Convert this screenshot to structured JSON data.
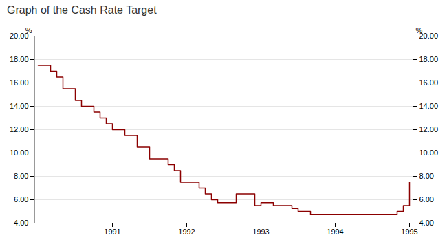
{
  "chart_data": {
    "type": "step",
    "title": "Graph of the Cash Rate Target",
    "ylabel": "%",
    "y2label": "%",
    "color": "#8B0000",
    "categories": [
      null,
      null,
      null,
      null,
      null,
      null,
      null,
      null,
      null,
      null,
      null,
      null,
      "1991",
      null,
      null,
      null,
      null,
      null,
      null,
      null,
      null,
      null,
      null,
      null,
      "1992",
      null,
      null,
      null,
      null,
      null,
      null,
      null,
      null,
      null,
      null,
      null,
      "1993",
      null,
      null,
      null,
      null,
      null,
      null,
      null,
      null,
      null,
      null,
      null,
      "1994",
      null,
      null,
      null,
      null,
      null,
      null,
      null,
      null,
      null,
      null,
      null,
      "1995"
    ],
    "values": [
      17.5,
      17.5,
      17.0,
      16.5,
      15.5,
      15.5,
      14.5,
      14.0,
      14.0,
      13.5,
      13.0,
      12.5,
      12.0,
      12.0,
      11.5,
      11.5,
      10.5,
      10.5,
      9.5,
      9.5,
      9.5,
      9.0,
      8.5,
      7.5,
      7.5,
      7.5,
      7.0,
      6.5,
      6.0,
      5.75,
      5.75,
      5.75,
      6.5,
      6.5,
      6.5,
      5.5,
      5.75,
      5.75,
      5.5,
      5.5,
      5.5,
      5.25,
      5.0,
      5.0,
      4.75,
      4.75,
      4.75,
      4.75,
      4.75,
      4.75,
      4.75,
      4.75,
      4.75,
      4.75,
      4.75,
      4.75,
      4.75,
      4.75,
      5.0,
      5.5,
      7.5
    ],
    "ylim": [
      4.0,
      20.0
    ],
    "yticks": [
      {
        "value": 4.0,
        "label": "4.00"
      },
      {
        "value": 6.0,
        "label": "6.00"
      },
      {
        "value": 8.0,
        "label": "8.00"
      },
      {
        "value": 10.0,
        "label": "10.00"
      },
      {
        "value": 12.0,
        "label": "12.00"
      },
      {
        "value": 14.0,
        "label": "14.00"
      },
      {
        "value": 16.0,
        "label": "16.00"
      },
      {
        "value": 18.0,
        "label": "18.00"
      },
      {
        "value": 20.0,
        "label": "20.00"
      }
    ],
    "y2lim": [
      4.0,
      20.0
    ],
    "y2ticks": [
      {
        "value": 4.0,
        "label": "4.00"
      },
      {
        "value": 6.0,
        "label": "6.00"
      },
      {
        "value": 8.0,
        "label": "8.00"
      },
      {
        "value": 10.0,
        "label": "10.00"
      },
      {
        "value": 12.0,
        "label": "12.00"
      },
      {
        "value": 14.0,
        "label": "14.00"
      },
      {
        "value": 16.0,
        "label": "16.00"
      },
      {
        "value": 18.0,
        "label": "18.00"
      },
      {
        "value": 20.0,
        "label": "20.00"
      }
    ],
    "grid": true
  }
}
